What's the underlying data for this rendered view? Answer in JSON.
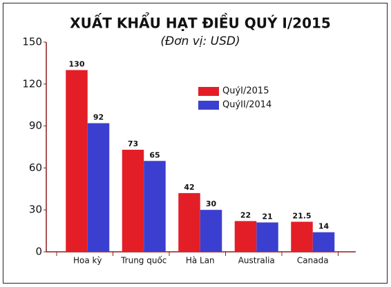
{
  "chart_data": {
    "type": "bar",
    "title": "XUẤT KHẨU HẠT ĐIỀU QUÝ I/2015",
    "subtitle": "(Đơn vị: USD)",
    "categories": [
      "Hoa kỳ",
      "Trung quốc",
      "Hà Lan",
      "Australia",
      "Canada"
    ],
    "series": [
      {
        "name": "QuýI/2015",
        "color": "#e41e26",
        "values": [
          130,
          73,
          42,
          22,
          21.5
        ]
      },
      {
        "name": "QuýII/2014",
        "color": "#3b3fcf",
        "values": [
          92,
          65,
          30,
          21,
          14
        ]
      }
    ],
    "ylim": [
      0,
      150
    ],
    "yticks": [
      0,
      30,
      60,
      90,
      120,
      150
    ],
    "grid": false,
    "legend": "upper right",
    "axis_color": "#8c1b1b"
  }
}
